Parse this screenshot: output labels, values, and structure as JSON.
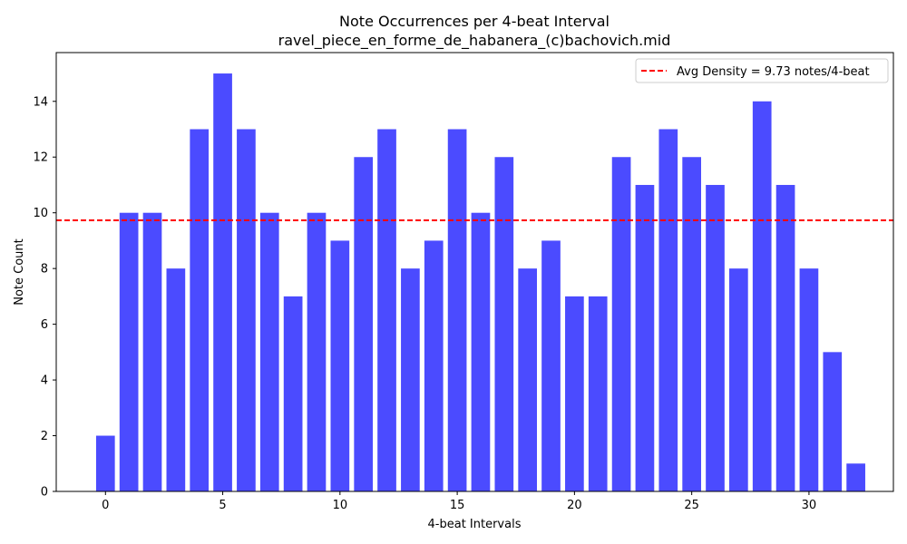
{
  "chart_data": {
    "type": "bar",
    "title": "Note Occurrences per 4-beat Interval",
    "subtitle": "ravel_piece_en_forme_de_habanera_(c)bachovich.mid",
    "xlabel": "4-beat Intervals",
    "ylabel": "Note Count",
    "x": [
      0,
      1,
      2,
      3,
      4,
      5,
      6,
      7,
      8,
      9,
      10,
      11,
      12,
      13,
      14,
      15,
      16,
      17,
      18,
      19,
      20,
      21,
      22,
      23,
      24,
      25,
      26,
      27,
      28,
      29,
      30,
      31,
      32
    ],
    "values": [
      2,
      10,
      10,
      8,
      13,
      15,
      13,
      10,
      7,
      10,
      9,
      12,
      13,
      8,
      9,
      13,
      10,
      12,
      8,
      9,
      7,
      7,
      12,
      11,
      13,
      12,
      11,
      8,
      14,
      11,
      8,
      5,
      1
    ],
    "xlim": [
      -2.1,
      33.6
    ],
    "ylim": [
      0,
      15.75
    ],
    "xticks": [
      0,
      5,
      10,
      15,
      20,
      25,
      30
    ],
    "yticks": [
      0,
      2,
      4,
      6,
      8,
      10,
      12,
      14
    ],
    "bar_color": "#4b4bff",
    "average": {
      "value": 9.73,
      "color": "#ff0000",
      "label": "Avg Density = 9.73 notes/4-beat"
    },
    "legend_position": "top-right",
    "grid": false
  }
}
